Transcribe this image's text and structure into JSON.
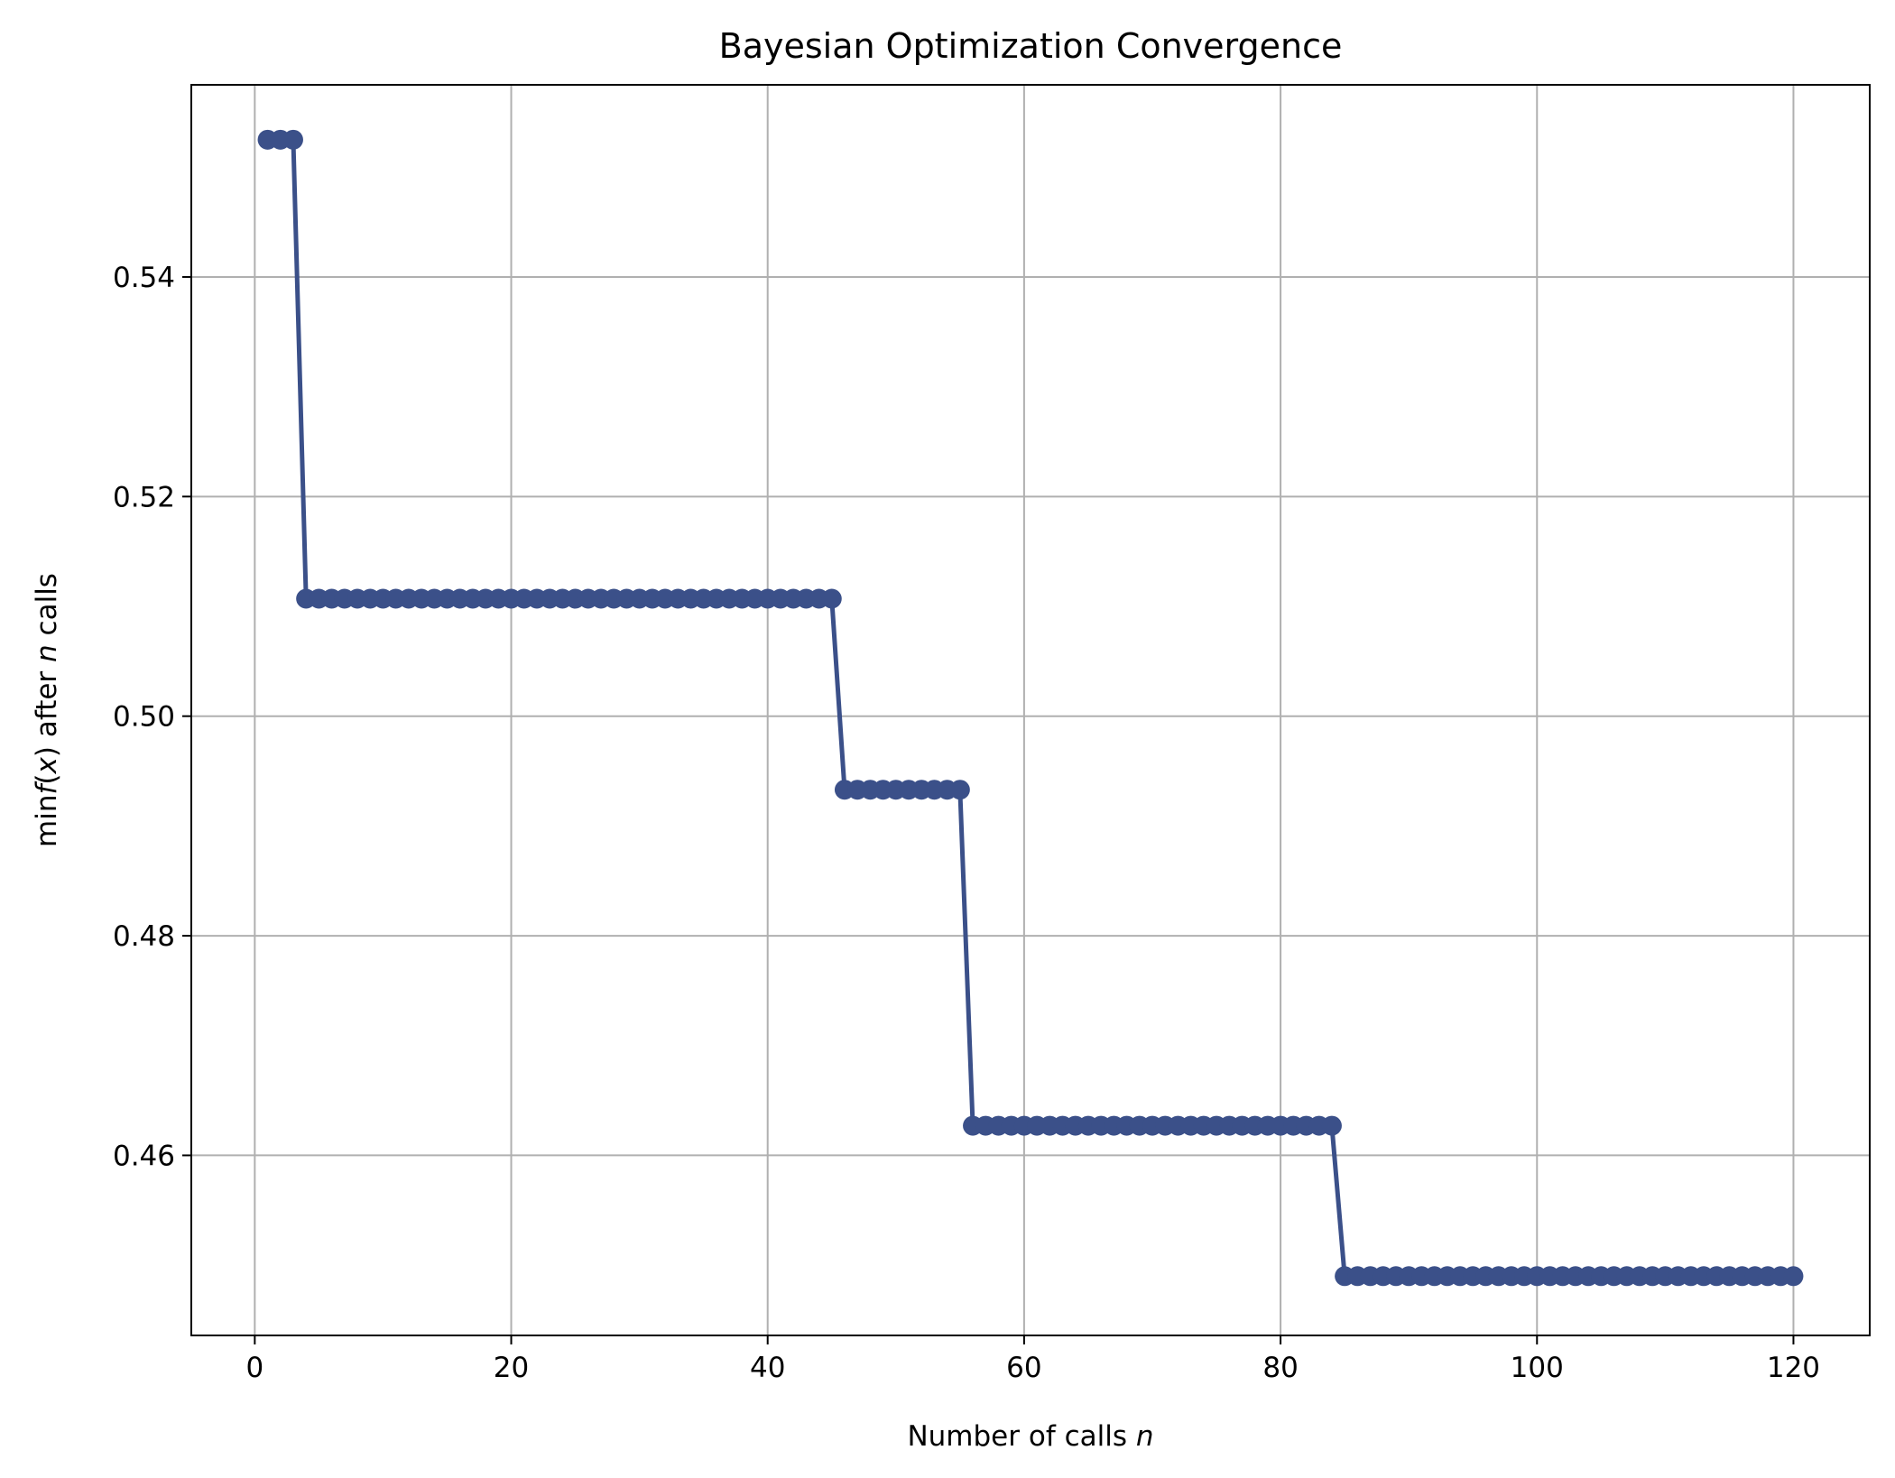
{
  "chart_data": {
    "type": "line",
    "title": "Bayesian Optimization Convergence",
    "xlabel": {
      "prefix": "Number of calls ",
      "var": "n"
    },
    "ylabel": {
      "prefix": "min",
      "f": "f",
      "lp": "(",
      "x": "x",
      "rp": ")",
      "mid": " after ",
      "n": "n",
      "suffix": " calls"
    },
    "xlim": [
      -4.95,
      125.95
    ],
    "ylim": [
      0.4436,
      0.5575
    ],
    "xticks": [
      0,
      20,
      40,
      60,
      80,
      100,
      120
    ],
    "xtick_labels": [
      "0",
      "20",
      "40",
      "60",
      "80",
      "100",
      "120"
    ],
    "yticks": [
      0.46,
      0.48,
      0.5,
      0.52,
      0.54
    ],
    "ytick_labels": [
      "0.46",
      "0.48",
      "0.50",
      "0.52",
      "0.54"
    ],
    "grid": true,
    "markers": true,
    "color": "#3b5089",
    "grid_color": "#b0b0b0",
    "segments": [
      {
        "from": 1,
        "to": 3,
        "value": 0.5525
      },
      {
        "from": 4,
        "to": 45,
        "value": 0.5107
      },
      {
        "from": 46,
        "to": 55,
        "value": 0.4933
      },
      {
        "from": 56,
        "to": 84,
        "value": 0.4627
      },
      {
        "from": 85,
        "to": 120,
        "value": 0.449
      }
    ]
  }
}
